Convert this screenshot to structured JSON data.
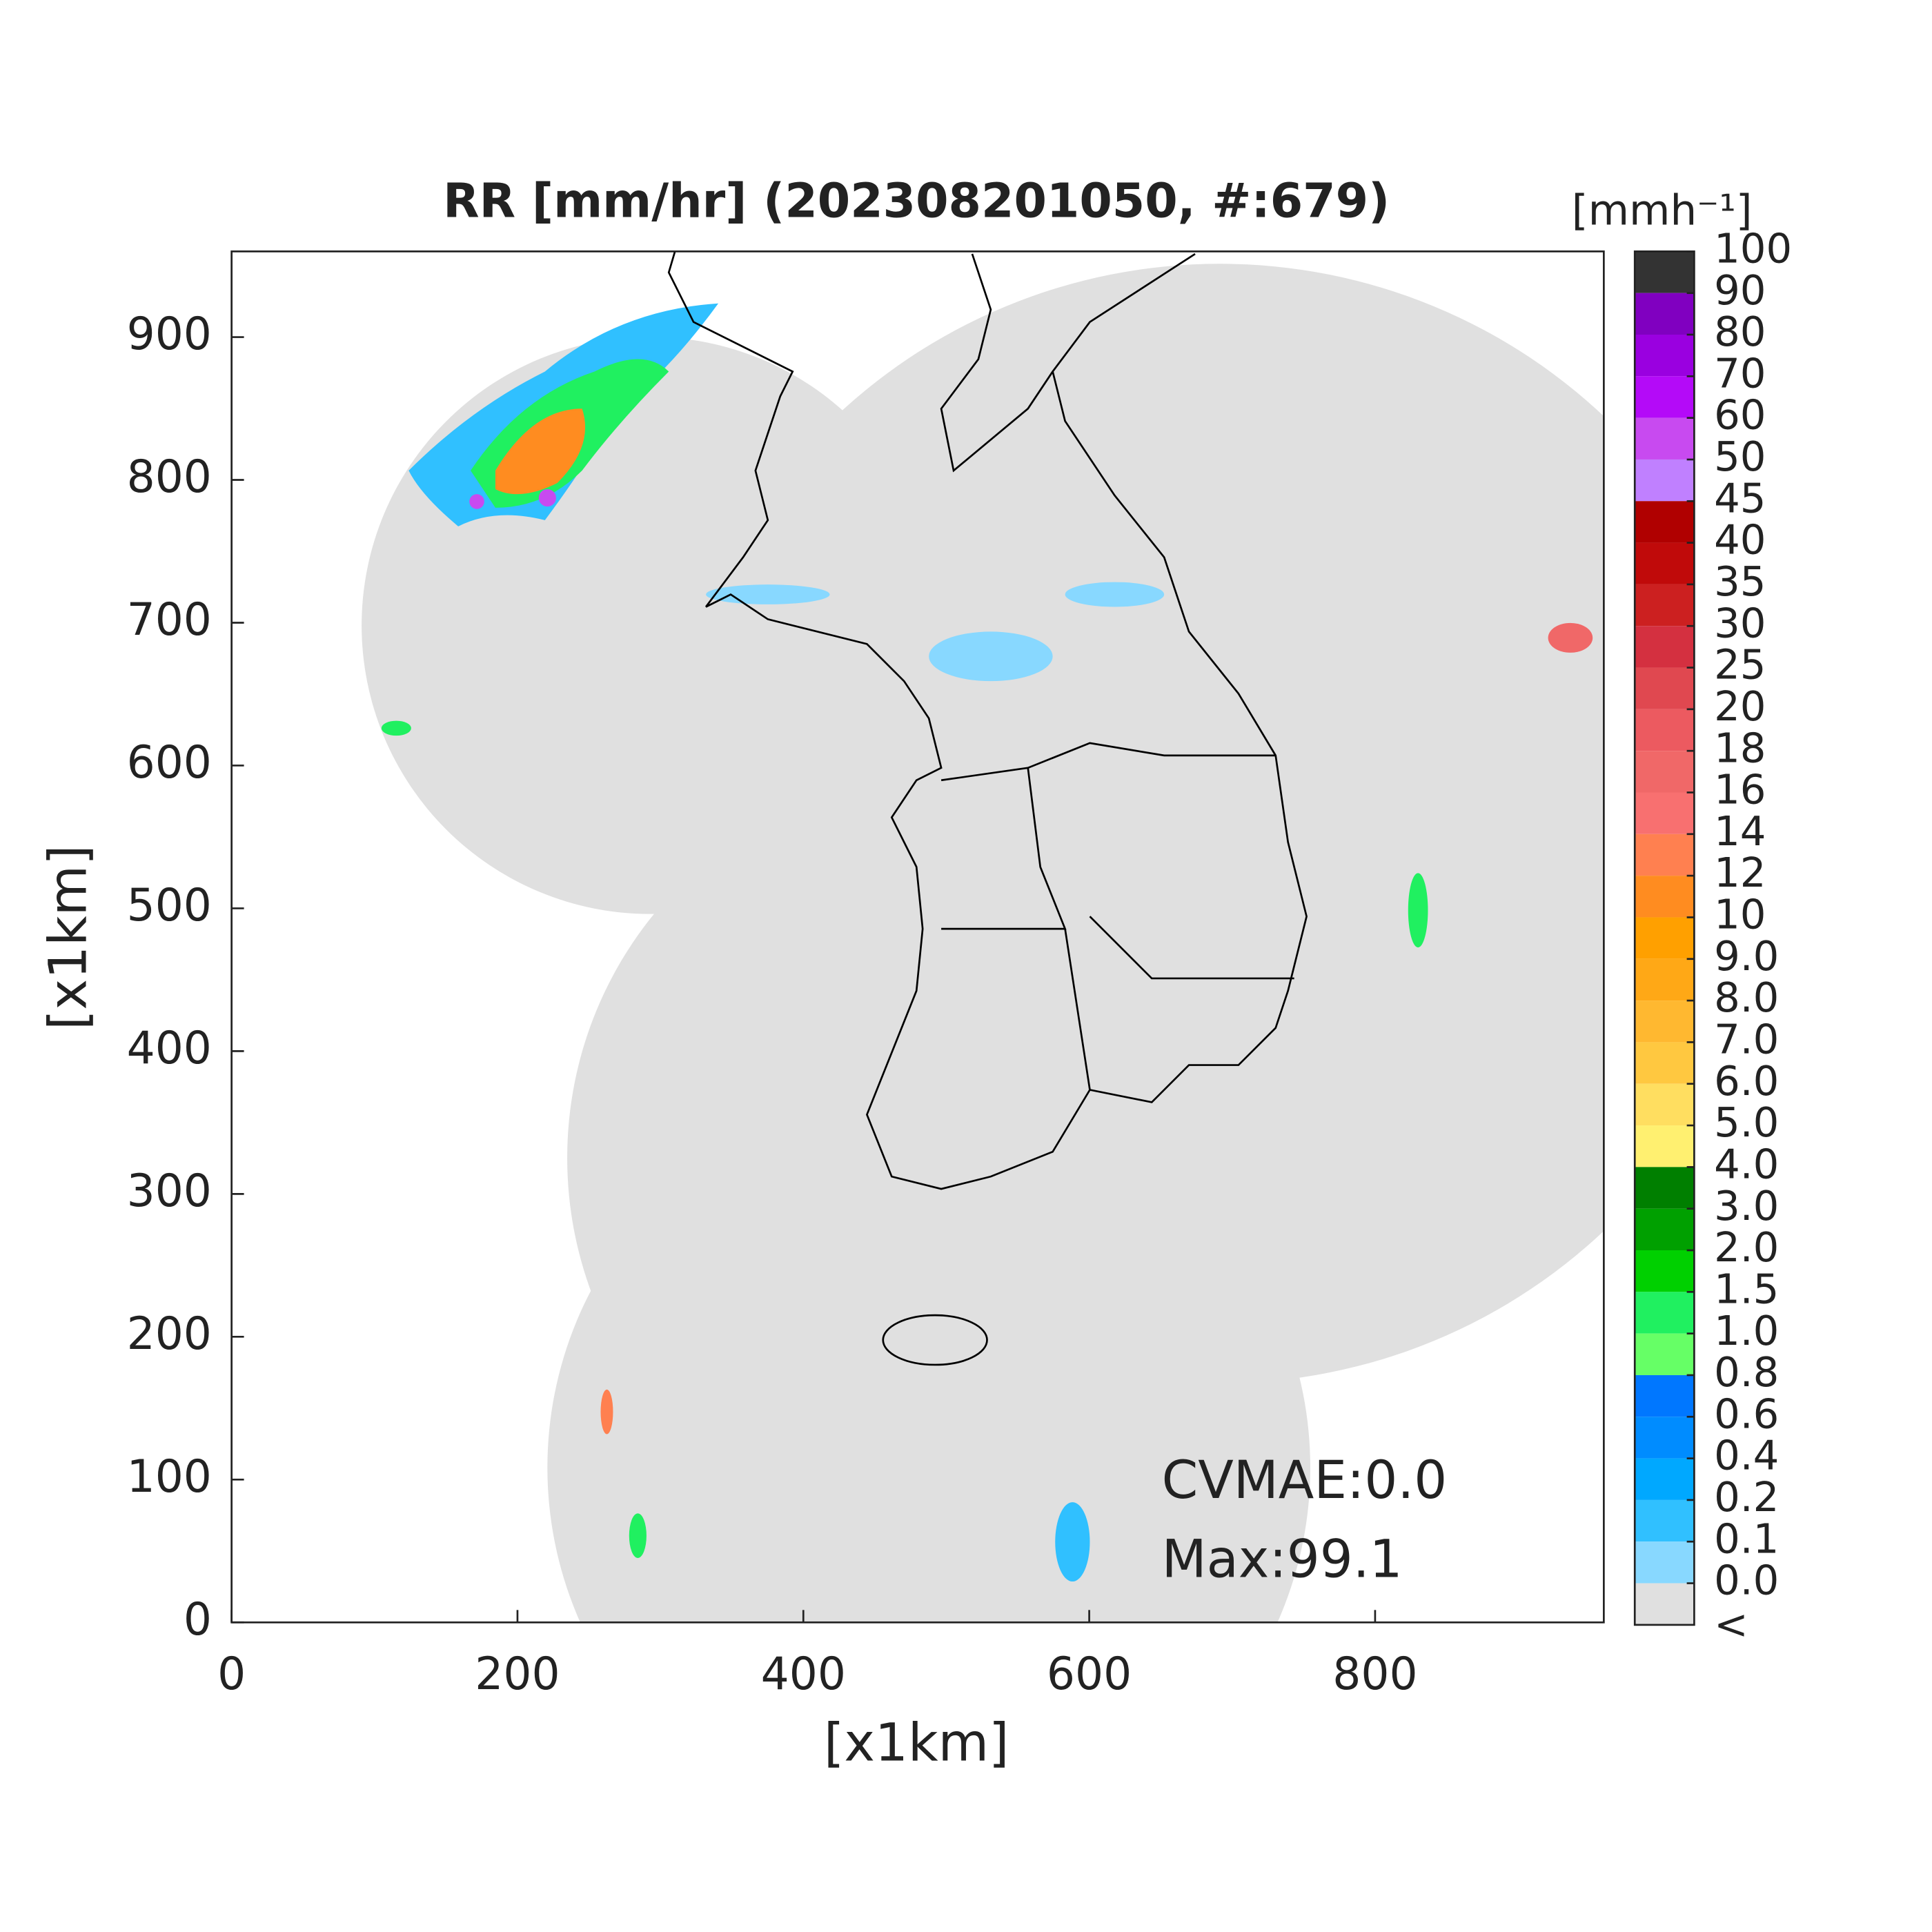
{
  "chart_data": {
    "type": "map",
    "title": "RR [mm/hr] (202308201050, #:679)",
    "xlabel": "[x1km]",
    "ylabel": "[x1km]",
    "xlim": [
      0,
      960
    ],
    "ylim": [
      0,
      960
    ],
    "xticks": [
      0,
      200,
      400,
      600,
      800
    ],
    "yticks": [
      0,
      100,
      200,
      300,
      400,
      500,
      600,
      700,
      800,
      900
    ],
    "annotations": [
      "CVMAE:0.0",
      "Max:99.1"
    ],
    "colorbar": {
      "label": "[mmh⁻¹]",
      "ticks": [
        100,
        90,
        80,
        70,
        60,
        50,
        45,
        40,
        35,
        30,
        25,
        20,
        18,
        16,
        14,
        12,
        10,
        {
          "value": 9,
          "label": "9.0"
        },
        {
          "value": 8,
          "label": "8.0"
        },
        {
          "value": 7,
          "label": "7.0"
        },
        {
          "value": 6,
          "label": "6.0"
        },
        {
          "value": 5,
          "label": "5.0"
        },
        {
          "value": 4,
          "label": "4.0"
        },
        {
          "value": 3,
          "label": "3.0"
        },
        {
          "value": 2,
          "label": "2.0"
        },
        1.5,
        {
          "value": 1,
          "label": "1.0"
        },
        0.8,
        0.6,
        0.4,
        0.2,
        0.1,
        {
          "value": 0,
          "label": "0.0"
        }
      ],
      "under_label": "<",
      "colors": [
        "#333333",
        "#8000c0",
        "#9a00e0",
        "#b40af8",
        "#c84af0",
        "#c080ff",
        "#b00000",
        "#c00a0a",
        "#cc2020",
        "#d43040",
        "#e04850",
        "#ec5a60",
        "#f06868",
        "#f87070",
        "#ff8050",
        "#ff8c20",
        "#ffa000",
        "#ffa816",
        "#ffb830",
        "#ffc840",
        "#ffde60",
        "#fff070",
        "#007f00",
        "#00a000",
        "#00d000",
        "#20f060",
        "#66ff66",
        "#0077ff",
        "#008cff",
        "#00a8ff",
        "#30c0ff",
        "#88d8ff",
        "#e0e0e0",
        "#ffffff"
      ]
    }
  }
}
